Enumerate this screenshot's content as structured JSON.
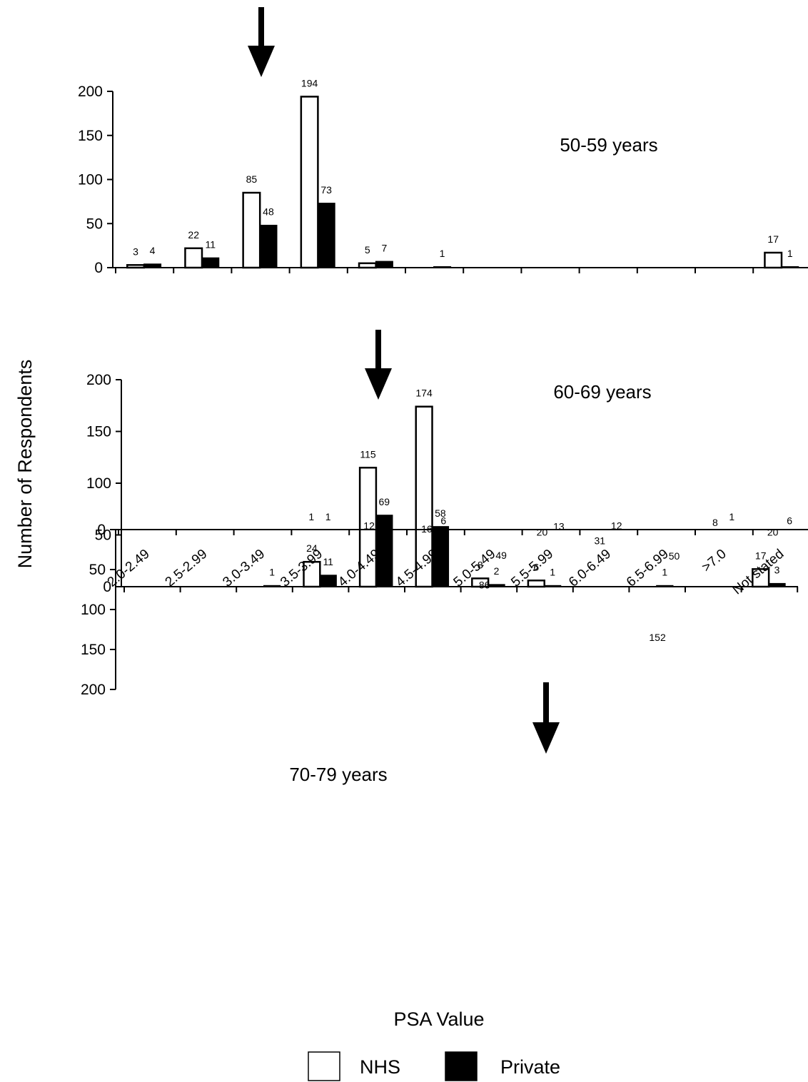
{
  "chart_data": [
    {
      "type": "bar",
      "panel_label": "50-59 years",
      "categories": [
        "2.0-2.49",
        "2.5-2.99",
        "3.0-3.49",
        "3.5-3.99",
        "4.0-4.49",
        "4.5-4.99",
        "5.0-5.49",
        "5.5-5.99",
        "6.0-6.49",
        "6.5-6.99",
        ">7.0",
        "Not stated"
      ],
      "series": [
        {
          "name": "NHS",
          "values": [
            3,
            22,
            85,
            194,
            5,
            0,
            0,
            0,
            0,
            0,
            0,
            17
          ],
          "labels": [
            "3",
            "22",
            "85",
            "194",
            "5",
            "",
            "",
            "",
            "",
            "",
            "",
            "17"
          ]
        },
        {
          "name": "Private",
          "values": [
            4,
            11,
            48,
            73,
            7,
            1,
            0,
            0,
            0,
            0,
            0,
            1
          ],
          "labels": [
            "4",
            "11",
            "48",
            "73",
            "7",
            "1",
            "",
            "",
            "",
            "",
            "",
            "1"
          ]
        }
      ],
      "ylim": [
        0,
        200
      ],
      "yticks": [
        "0",
        "50",
        "100",
        "150",
        "200"
      ],
      "arrow_at_category": "3.0-3.49",
      "legend": "bottom"
    },
    {
      "type": "bar",
      "panel_label": "60-69 years",
      "categories": [
        "2.0-2.49",
        "2.5-2.99",
        "3.0-3.49",
        "3.5-3.99",
        "4.0-4.49",
        "4.5-4.99",
        "5.0-5.49",
        "5.5-5.99",
        "6.0-6.49",
        "6.5-6.99",
        ">7.0",
        "Not stated"
      ],
      "series": [
        {
          "name": "NHS",
          "values": [
            0,
            0,
            0,
            24,
            115,
            174,
            8,
            6,
            0,
            0,
            0,
            17
          ],
          "labels": [
            "",
            "",
            "",
            "24",
            "115",
            "174",
            "8",
            "6",
            "",
            "",
            "",
            "17"
          ]
        },
        {
          "name": "Private",
          "values": [
            0,
            0,
            1,
            11,
            69,
            58,
            2,
            1,
            0,
            1,
            0,
            3
          ],
          "labels": [
            "",
            "",
            "1",
            "11",
            "69",
            "58",
            "2",
            "1",
            "",
            "1",
            "",
            "3"
          ]
        }
      ],
      "ylim": [
        0,
        200
      ],
      "yticks": [
        "0",
        "50",
        "100",
        "150",
        "200"
      ],
      "arrow_at_category": "4.0-4.49",
      "legend": "bottom"
    },
    {
      "type": "bar",
      "panel_label": "70-79 years",
      "categories": [
        "2.0-2.49",
        "2.5-2.99",
        "3.0-3.49",
        "3.5-3.99",
        "4.0-4.49",
        "4.5-4.99",
        "5.0-5.49",
        "5.5-5.99",
        "6.0-6.49",
        "6.5-6.99",
        ">7.0",
        "Not stated"
      ],
      "series": [
        {
          "name": "NHS",
          "values": [
            0,
            0,
            0,
            1,
            12,
            16,
            86,
            20,
            31,
            152,
            8,
            20
          ],
          "labels": [
            "",
            "",
            "",
            "1",
            "12",
            "16",
            "86",
            "20",
            "31",
            "152",
            "8",
            "20"
          ]
        },
        {
          "name": "Private",
          "values": [
            0,
            0,
            0,
            1,
            6,
            6,
            49,
            13,
            12,
            50,
            1,
            6
          ],
          "labels": [
            "",
            "",
            "",
            "1",
            "6",
            "6",
            "49",
            "13",
            "12",
            "50",
            "1",
            "6"
          ]
        }
      ],
      "ylim": [
        0,
        200
      ],
      "yticks": [
        "0",
        "50",
        "100",
        "150",
        "200"
      ],
      "arrow_at_category": "5.5-5.99",
      "legend": "bottom"
    }
  ],
  "axes": {
    "ylabel": "Number of Respondents",
    "xlabel": "PSA Value"
  },
  "legend": {
    "items": [
      {
        "name": "NHS",
        "color": "#ffffff"
      },
      {
        "name": "Private",
        "color": "#000000"
      }
    ]
  },
  "colors": {
    "nhs_fill": "#ffffff",
    "private_fill": "#000000",
    "stroke": "#000000"
  }
}
